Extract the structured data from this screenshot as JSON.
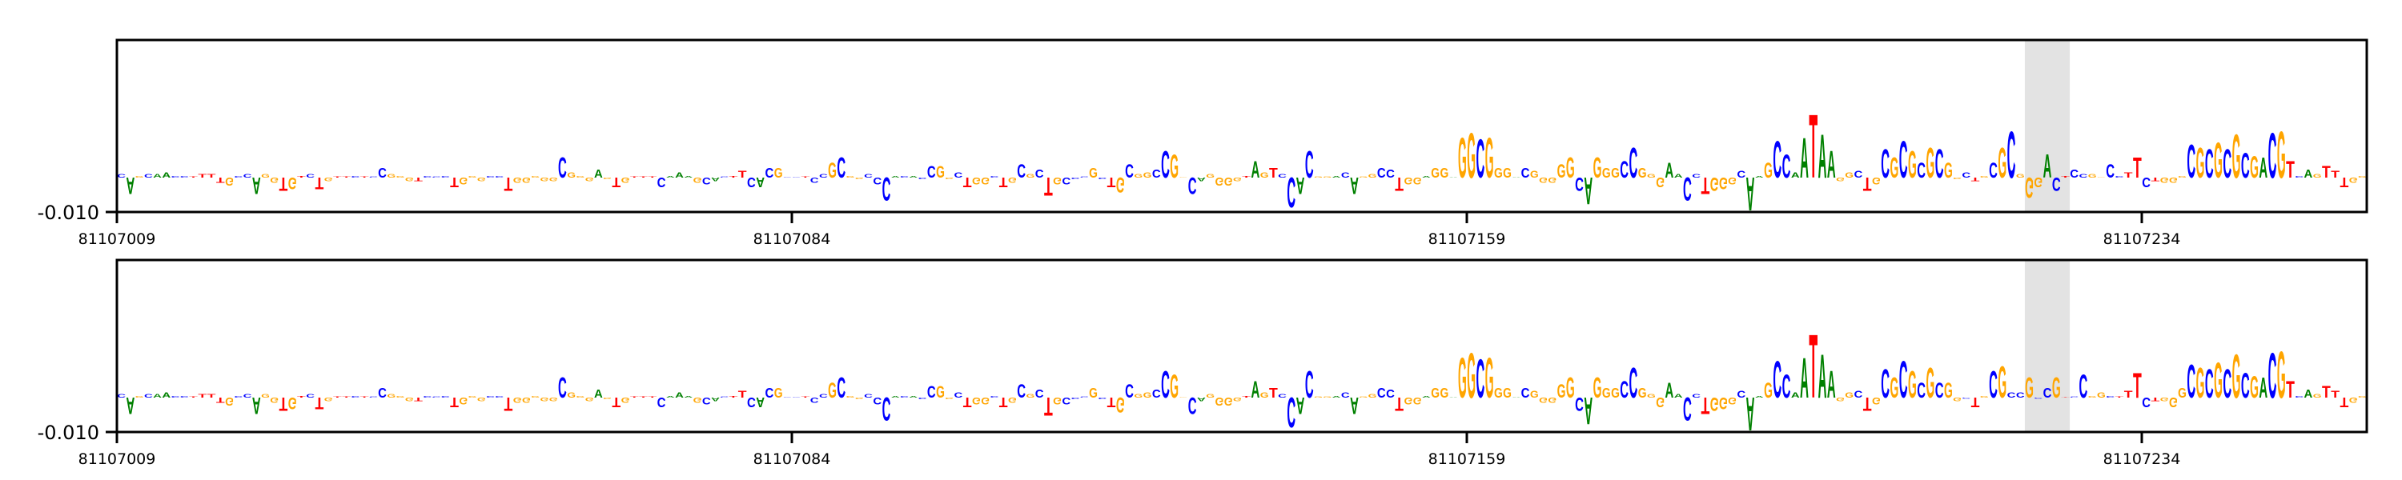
{
  "chart_data": {
    "type": "sequence-logo",
    "x_start": 81107009,
    "x_ticks": [
      81107009,
      81107084,
      81107159,
      81107234
    ],
    "x_tick_labels": [
      "81107009",
      "81107084",
      "81107159",
      "81107234"
    ],
    "y_ticks": [
      -0.01
    ],
    "y_tick_labels": [
      "-0.010"
    ],
    "ylim": [
      -0.01,
      0.04
    ],
    "highlight": {
      "start": 81107221,
      "end": 81107225,
      "color": "#e3e3e3"
    },
    "colors": {
      "A": "#008000",
      "C": "#0000ff",
      "G": "#ffa500",
      "T": "#ff0000"
    },
    "panels": [
      {
        "bases": "CAGCAACCTTTTGCCAGGTGTCTGTTCTCCGGGTCCCTGGGCCTGGGGGCGGGAGTGTTTCAAAGCACTTCACGCCTCCGCGGCCCACACCGGCTGGCTGCGCTGCCCGCTGCGGCCGGCAGGGGTAGTCCACGGACAGGCCTGGAGGAGGCGGGACGGGGGCAGGGCCGGGAACCTGGGCAAGCCAATAAGGCTGCGCGCGCGGCTGCGCGGGACTCCGGCCTTCTGGGCGCGCGCGACGTCAGTTTGG",
        "heights": [
          0.001,
          -0.005,
          0.0005,
          0.001,
          0.001,
          0.0015,
          0.0005,
          0.0005,
          0.0003,
          0.001,
          0.001,
          -0.0015,
          -0.0025,
          0.0005,
          0.001,
          -0.005,
          0.001,
          -0.0015,
          -0.004,
          -0.0035,
          0.0005,
          0.001,
          -0.0035,
          -0.001,
          0.0003,
          0.0003,
          0.0005,
          0.0003,
          0.0003,
          0.003,
          0.001,
          0.0005,
          -0.001,
          -0.001,
          0.0005,
          0.0003,
          0.0005,
          -0.003,
          -0.002,
          0.0005,
          -0.001,
          0.0005,
          0.0005,
          -0.004,
          -0.0015,
          -0.0015,
          0.0005,
          -0.001,
          -0.001,
          0.006,
          0.0015,
          0.0005,
          -0.001,
          0.0025,
          -0.0005,
          -0.003,
          -0.0015,
          0.0003,
          0.0003,
          0.0003,
          -0.003,
          0.0005,
          0.0015,
          0.0005,
          -0.0015,
          -0.002,
          -0.001,
          0.0003,
          0.0005,
          0.002,
          -0.003,
          -0.003,
          0.003,
          0.003,
          0.0002,
          0.0002,
          0.0003,
          -0.0015,
          0.001,
          0.0045,
          0.006,
          0.0005,
          -0.0005,
          0.001,
          -0.002,
          -0.007,
          0.0005,
          0.0005,
          0.0005,
          -0.0005,
          0.0035,
          0.0035,
          -0.0005,
          0.0015,
          -0.003,
          -0.002,
          -0.002,
          0.0005,
          -0.003,
          -0.0015,
          0.004,
          0.001,
          0.0025,
          -0.0055,
          -0.002,
          -0.002,
          -0.0005,
          0.0003,
          0.003,
          -0.0005,
          -0.003,
          -0.0045,
          0.004,
          0.001,
          0.0015,
          0.0025,
          0.008,
          0.007,
          0.0002,
          -0.005,
          -0.001,
          0.001,
          -0.0025,
          -0.0025,
          -0.001,
          0.0005,
          0.005,
          0.0015,
          0.003,
          0.001,
          -0.009,
          -0.005,
          0.008,
          0.0003,
          0.0003,
          0.0005,
          0.0015,
          -0.005,
          0.0003,
          0.001,
          0.003,
          0.0025,
          -0.004,
          -0.002,
          -0.002,
          0.0005,
          0.003,
          0.003,
          0.0002,
          0.012,
          0.0135,
          0.0115,
          0.012,
          0.003,
          0.003,
          0.0001,
          0.003,
          0.002,
          -0.0015,
          -0.0015,
          0.004,
          0.006,
          -0.004,
          -0.008,
          0.006,
          0.003,
          0.003,
          0.005,
          0.009,
          0.003,
          0.001,
          -0.003,
          0.0045,
          0.001,
          -0.007,
          0.001,
          -0.005,
          -0.004,
          -0.0035,
          -0.002,
          0.002,
          -0.01,
          0.0005,
          0.0045,
          0.011,
          0.007,
          0.0015,
          0.012,
          0.019,
          0.013,
          0.008,
          -0.001,
          0.0015,
          0.002,
          -0.004,
          -0.002,
          0.0085,
          0.006,
          0.011,
          0.008,
          0.0045,
          0.009,
          0.0085,
          0.0045,
          -0.0005,
          0.0015,
          -0.001,
          0.0005,
          0.0045,
          0.009,
          0.014,
          0.001,
          -0.006,
          -0.003,
          0.007,
          -0.004,
          0.0005,
          0.0025,
          0.001,
          0.001,
          0.0002,
          0.004,
          0.0005,
          0.0015,
          0.006,
          -0.003,
          -0.001,
          -0.0015,
          -0.0015,
          0.0005,
          0.01,
          0.009,
          0.0085,
          0.0105,
          0.0085,
          0.013,
          0.0075,
          0.0065,
          0.006,
          0.0135,
          0.014,
          0.005,
          0.0005,
          0.0025,
          0.001,
          0.0035,
          0.002,
          -0.003,
          -0.0015,
          0.0005
        ]
      },
      {
        "bases": "CAGCAACCTTTTGCCAGGTGTCTGTTCTCCGGGTCCCTGGGCCTGGGGGCGGGAGTGTTTCAAAGCACTTCACGCCTCCGCGGCCCACACCGGCTGGCTGCGCTGCCCGCTGCGGCCGGCAGGGGTAGTCCACGGACAGGCCTGGAGGAGGCGGGACGGGGGCAGGGCCGGGAACCTGGGCAAGCCAATAAGGCTGCGCGCGCGGCTGCGCCGCCGTCCGGCTTTCTGGGCGCGCGCGACGTCAGTTTGG",
        "heights": [
          0.001,
          -0.005,
          0.0005,
          0.001,
          0.001,
          0.0015,
          0.0005,
          0.0005,
          0.0003,
          0.001,
          0.001,
          -0.0015,
          -0.0025,
          0.0005,
          0.001,
          -0.005,
          0.001,
          -0.0015,
          -0.004,
          -0.0035,
          0.0005,
          0.001,
          -0.0035,
          -0.001,
          0.0003,
          0.0003,
          0.0005,
          0.0003,
          0.0003,
          0.003,
          0.001,
          0.0005,
          -0.001,
          -0.001,
          0.0005,
          0.0003,
          0.0005,
          -0.003,
          -0.002,
          0.0005,
          -0.001,
          0.0005,
          0.0005,
          -0.004,
          -0.0015,
          -0.0015,
          0.0005,
          -0.001,
          -0.001,
          0.006,
          0.0015,
          0.0005,
          -0.001,
          0.0025,
          -0.0005,
          -0.003,
          -0.0015,
          0.0003,
          0.0003,
          0.0003,
          -0.003,
          0.0005,
          0.0015,
          0.0005,
          -0.0015,
          -0.002,
          -0.001,
          0.0003,
          0.0005,
          0.002,
          -0.003,
          -0.003,
          0.003,
          0.003,
          0.0002,
          0.0002,
          0.0003,
          -0.0015,
          0.001,
          0.0045,
          0.006,
          0.0005,
          -0.0005,
          0.001,
          -0.002,
          -0.007,
          0.0005,
          0.0005,
          0.0005,
          -0.0005,
          0.0035,
          0.0035,
          -0.0005,
          0.0015,
          -0.003,
          -0.002,
          -0.002,
          0.0005,
          -0.003,
          -0.0015,
          0.004,
          0.001,
          0.0025,
          -0.0055,
          -0.002,
          -0.002,
          -0.0005,
          0.0003,
          0.003,
          -0.0005,
          -0.003,
          -0.0045,
          0.004,
          0.001,
          0.0015,
          0.0025,
          0.008,
          0.007,
          0.0002,
          -0.005,
          -0.001,
          0.001,
          -0.0025,
          -0.0025,
          -0.001,
          0.0005,
          0.005,
          0.0015,
          0.003,
          0.001,
          -0.009,
          -0.005,
          0.008,
          0.0003,
          0.0003,
          0.0005,
          0.0015,
          -0.005,
          0.0003,
          0.001,
          0.003,
          0.0025,
          -0.004,
          -0.002,
          -0.002,
          0.0005,
          0.003,
          0.003,
          0.0002,
          0.012,
          0.0135,
          0.0115,
          0.012,
          0.003,
          0.003,
          0.0001,
          0.003,
          0.002,
          -0.0015,
          -0.0015,
          0.004,
          0.006,
          -0.004,
          -0.008,
          0.006,
          0.003,
          0.003,
          0.005,
          0.009,
          0.003,
          0.001,
          -0.003,
          0.0045,
          0.001,
          -0.007,
          0.001,
          -0.005,
          -0.004,
          -0.0035,
          -0.002,
          0.002,
          -0.01,
          0.0005,
          0.0045,
          0.011,
          0.007,
          0.0015,
          0.012,
          0.019,
          0.013,
          0.008,
          -0.001,
          0.0015,
          0.002,
          -0.004,
          -0.002,
          0.0085,
          0.006,
          0.011,
          0.008,
          0.0045,
          0.009,
          0.0045,
          0.0045,
          -0.001,
          -0.0003,
          -0.003,
          0.0005,
          0.008,
          0.0095,
          0.0015,
          0.0015,
          0.006,
          -0.0003,
          0.003,
          0.006,
          0.0001,
          0.0003,
          0.007,
          0.0005,
          0.0015,
          0.0005,
          0.0003,
          0.002,
          0.0075,
          -0.003,
          -0.001,
          -0.001,
          -0.003,
          0.003,
          0.01,
          0.009,
          0.0085,
          0.0105,
          0.0085,
          0.013,
          0.0075,
          0.0065,
          0.006,
          0.0135,
          0.014,
          0.005,
          0.0005,
          0.0025,
          0.001,
          0.0035,
          0.002,
          -0.003,
          -0.0015,
          0.0005
        ]
      }
    ]
  }
}
